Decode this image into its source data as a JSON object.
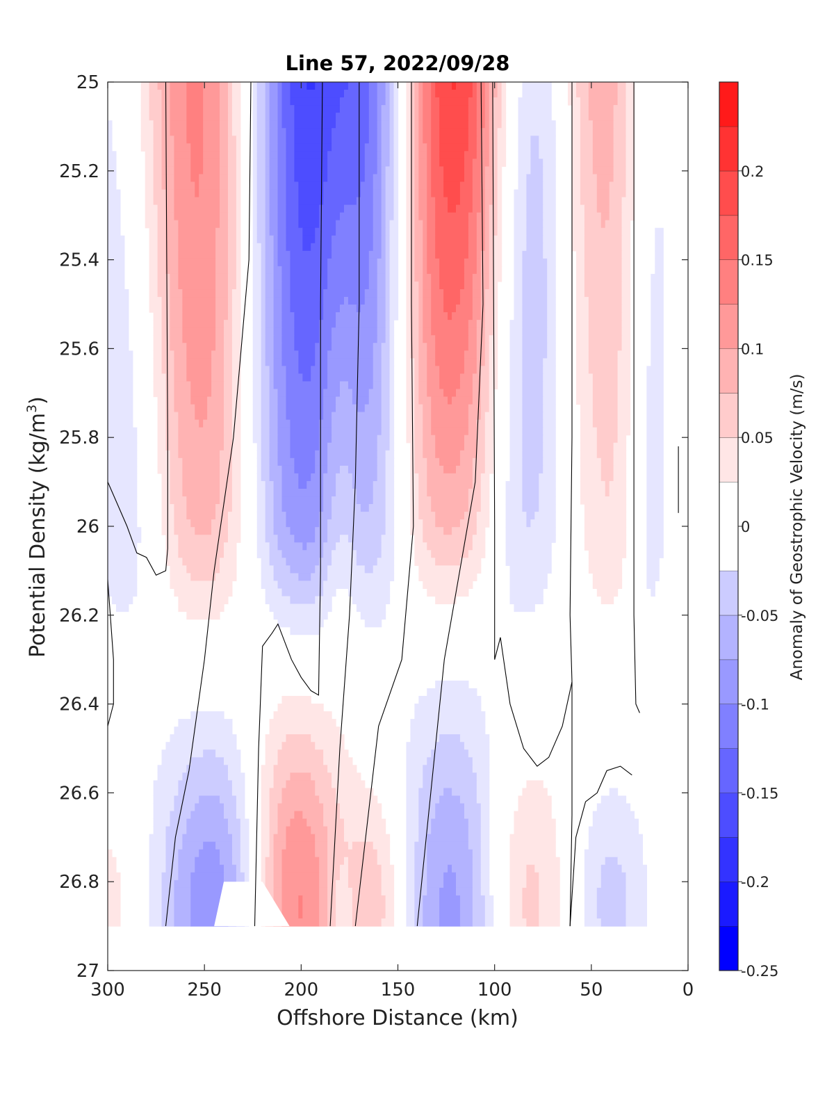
{
  "chart_data": {
    "type": "heatmap",
    "title": "Line 57, 2022/09/28",
    "xlabel": "Offshore Distance (km)",
    "ylabel_main": "Potential Density (kg/m",
    "ylabel_sup": "3",
    "ylabel_close": ")",
    "colorbar_label": "Anomaly of Geostrophic Velocity (m/s)",
    "xlim": [
      300,
      0
    ],
    "ylim": [
      25,
      27
    ],
    "x_reversed": true,
    "y_reversed": true,
    "xticks": [
      300,
      250,
      200,
      150,
      100,
      50,
      0
    ],
    "xtick_labels": [
      "300",
      "250",
      "200",
      "150",
      "100",
      "50",
      "0"
    ],
    "yticks": [
      25,
      25.2,
      25.4,
      25.6,
      25.8,
      26,
      26.2,
      26.4,
      26.6,
      26.8,
      27
    ],
    "ytick_labels": [
      "25",
      "25.2",
      "25.4",
      "25.6",
      "25.8",
      "26",
      "26.2",
      "26.4",
      "26.6",
      "26.8",
      "27"
    ],
    "colorbar": {
      "levels": [
        -0.25,
        -0.225,
        -0.2,
        -0.175,
        -0.15,
        -0.125,
        -0.1,
        -0.075,
        -0.05,
        -0.025,
        0.025,
        0.05,
        0.075,
        0.1,
        0.125,
        0.15,
        0.175,
        0.2,
        0.225,
        0.25
      ],
      "ticks": [
        -0.25,
        -0.2,
        -0.15,
        -0.1,
        -0.05,
        0,
        0.05,
        0.1,
        0.15,
        0.2
      ],
      "tick_labels": [
        "-0.25",
        "-0.2",
        "-0.15",
        "-0.1",
        "-0.05",
        "0",
        "0.05",
        "0.1",
        "0.15",
        "0.2"
      ],
      "colors": [
        "#0000ff",
        "#1a1aff",
        "#3333ff",
        "#4d4dff",
        "#6666ff",
        "#8080ff",
        "#9999ff",
        "#b3b3ff",
        "#ccccff",
        "#e6e6ff",
        "#ffffff",
        "#ffe6e6",
        "#ffcccc",
        "#ffb3b3",
        "#ff9999",
        "#ff8080",
        "#ff6666",
        "#ff4d4d",
        "#ff3333",
        "#ff1a1a",
        "#ff0000"
      ]
    },
    "data_bottom_density": 26.9,
    "grid": false,
    "legend": "colorbar-right",
    "cores": [
      {
        "x": 290,
        "top": -0.08,
        "bottom": -0.04,
        "width": 22
      },
      {
        "x": 250,
        "top": 0.2,
        "bottom": 0.05,
        "width": 30
      },
      {
        "x": 200,
        "top": -0.24,
        "bottom": -0.08,
        "width": 30
      },
      {
        "x": 180,
        "top": 0.05,
        "bottom": 0.03,
        "width": 10
      },
      {
        "x": 160,
        "top": -0.16,
        "bottom": -0.03,
        "width": 20
      },
      {
        "x": 125,
        "top": 0.25,
        "bottom": 0.03,
        "width": 30
      },
      {
        "x": 90,
        "top": -0.1,
        "bottom": -0.03,
        "width": 16
      },
      {
        "x": 75,
        "top": -0.06,
        "bottom": -0.02,
        "width": 14
      },
      {
        "x": 40,
        "top": 0.1,
        "bottom": 0.03,
        "width": 20
      },
      {
        "x": 20,
        "top": -0.07,
        "bottom": -0.04,
        "width": 12
      }
    ],
    "deep_cores": [
      {
        "x": 300,
        "center": 26.85,
        "spread": 0.15,
        "amp": 0.04,
        "width": 14
      },
      {
        "x": 243,
        "center": 26.88,
        "spread": 0.3,
        "amp": -0.13,
        "width": 22
      },
      {
        "x": 205,
        "center": 26.86,
        "spread": 0.32,
        "amp": 0.15,
        "width": 18
      },
      {
        "x": 180,
        "center": 26.88,
        "spread": 0.1,
        "amp": -0.03,
        "width": 5
      },
      {
        "x": 160,
        "center": 26.86,
        "spread": 0.2,
        "amp": 0.07,
        "width": 12
      },
      {
        "x": 122,
        "center": 26.88,
        "spread": 0.35,
        "amp": -0.11,
        "width": 20
      },
      {
        "x": 85,
        "center": 26.85,
        "spread": 0.25,
        "amp": 0.07,
        "width": 16
      },
      {
        "x": 40,
        "center": 26.85,
        "spread": 0.2,
        "amp": -0.06,
        "width": 14
      }
    ],
    "zero_contours": [
      [
        [
          270,
          25.0
        ],
        [
          269,
          25.8
        ],
        [
          269,
          26.05
        ],
        [
          270,
          26.1
        ],
        [
          275,
          26.11
        ],
        [
          280,
          26.07
        ],
        [
          285,
          26.06
        ],
        [
          290,
          26.0
        ],
        [
          295,
          25.95
        ],
        [
          300,
          25.9
        ]
      ],
      [
        [
          300,
          26.12
        ],
        [
          297,
          26.3
        ],
        [
          297,
          26.4
        ],
        [
          300,
          26.45
        ]
      ],
      [
        [
          226,
          25.0
        ],
        [
          227,
          25.4
        ],
        [
          235,
          25.8
        ],
        [
          245,
          26.1
        ],
        [
          250,
          26.3
        ],
        [
          258,
          26.55
        ],
        [
          265,
          26.7
        ],
        [
          270,
          26.9
        ]
      ],
      [
        [
          189,
          25.0
        ],
        [
          190,
          25.5
        ],
        [
          190,
          26.1
        ],
        [
          191,
          26.38
        ],
        [
          195,
          26.37
        ],
        [
          200,
          26.34
        ],
        [
          205,
          26.3
        ],
        [
          212,
          26.22
        ],
        [
          215,
          26.24
        ],
        [
          220,
          26.27
        ],
        [
          222,
          26.5
        ],
        [
          224,
          26.9
        ]
      ],
      [
        [
          170,
          25.0
        ],
        [
          170,
          25.5
        ],
        [
          172,
          25.9
        ],
        [
          175,
          26.2
        ],
        [
          180,
          26.5
        ],
        [
          185,
          26.9
        ]
      ],
      [
        [
          143,
          25.0
        ],
        [
          143,
          25.5
        ],
        [
          142,
          26.0
        ],
        [
          148,
          26.3
        ],
        [
          160,
          26.45
        ],
        [
          172,
          26.9
        ]
      ],
      [
        [
          107,
          25.0
        ],
        [
          106,
          25.5
        ],
        [
          110,
          25.9
        ],
        [
          120,
          26.15
        ],
        [
          126,
          26.3
        ],
        [
          133,
          26.6
        ],
        [
          140,
          26.9
        ]
      ],
      [
        [
          60,
          25.0
        ],
        [
          60,
          25.8
        ],
        [
          61,
          26.2
        ],
        [
          60,
          26.35
        ],
        [
          60,
          26.65
        ],
        [
          61,
          26.9
        ]
      ],
      [
        [
          101,
          25.0
        ],
        [
          100,
          26.0
        ],
        [
          100,
          26.3
        ],
        [
          97,
          26.25
        ],
        [
          92,
          26.4
        ],
        [
          85,
          26.5
        ],
        [
          78,
          26.54
        ],
        [
          72,
          26.52
        ],
        [
          65,
          26.45
        ],
        [
          60,
          26.35
        ]
      ],
      [
        [
          28,
          25.0
        ],
        [
          28,
          25.7
        ],
        [
          28,
          26.2
        ],
        [
          27,
          26.4
        ],
        [
          25,
          26.42
        ]
      ],
      [
        [
          29,
          26.56
        ],
        [
          35,
          26.54
        ],
        [
          42,
          26.55
        ],
        [
          47,
          26.6
        ],
        [
          53,
          26.62
        ],
        [
          58,
          26.7
        ],
        [
          61,
          26.9
        ]
      ],
      [
        [
          5,
          25.82
        ],
        [
          5,
          25.97
        ]
      ]
    ]
  }
}
